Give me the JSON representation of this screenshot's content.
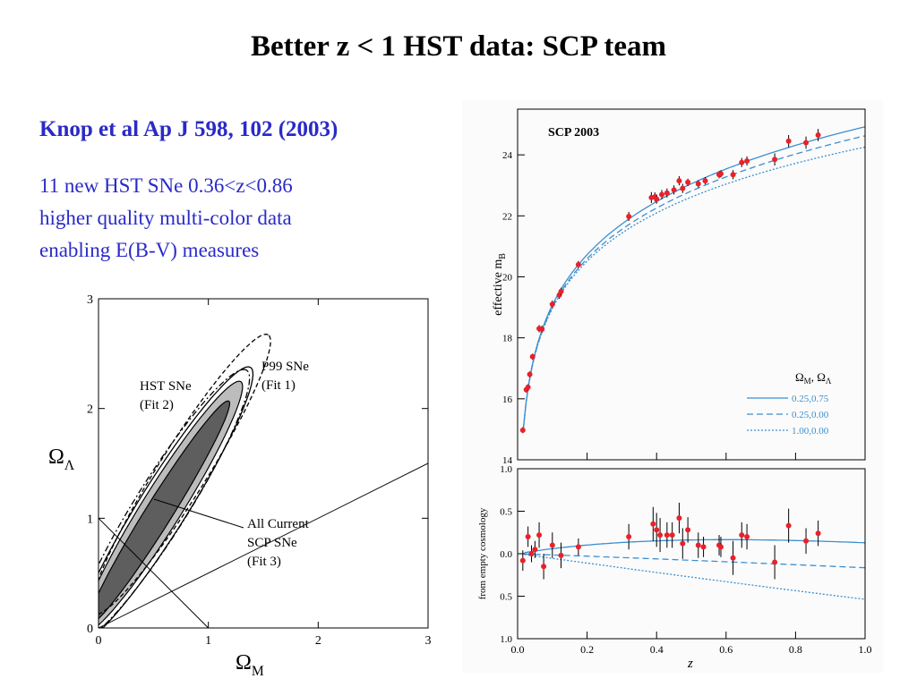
{
  "slide": {
    "title": "Better z < 1 HST data: SCP team",
    "citation": "Knop et al Ap J 598, 102 (2003)",
    "description_lines": [
      "11 new HST SNe 0.36<z<0.86",
      "higher quality multi-color data",
      "enabling E(B-V) measures"
    ]
  },
  "chart_data": [
    {
      "type": "contour",
      "xlabel": "Ω_M",
      "ylabel": "Ω_Λ",
      "xlim": [
        0,
        3
      ],
      "ylim": [
        0,
        3
      ],
      "xticks": [
        "0",
        "1",
        "2",
        "3"
      ],
      "yticks": [
        "0",
        "1",
        "2",
        "3"
      ],
      "annotations": [
        {
          "lines": [
            "P99 SNe",
            "(Fit 1)"
          ]
        },
        {
          "lines": [
            "HST SNe",
            "(Fit 2)"
          ]
        },
        {
          "lines": [
            "All Current",
            "SCP SNe",
            "(Fit 3)"
          ]
        }
      ],
      "reference_lines": [
        {
          "name": "flat",
          "points": [
            [
              0,
              1
            ],
            [
              1,
              0
            ]
          ]
        },
        {
          "name": "accel",
          "points": [
            [
              0,
              0
            ],
            [
              3,
              1.5
            ]
          ]
        }
      ],
      "contours": [
        {
          "name": "Fit 3 68%",
          "style": "filled-dark",
          "color": "#5e5e5e",
          "center": [
            0.55,
            1.05
          ],
          "semi_major": 1.2,
          "semi_minor": 0.12,
          "angle_deg": 58
        },
        {
          "name": "Fit 3 90%",
          "style": "filled-light",
          "color": "#bcbcbc",
          "center": [
            0.58,
            1.1
          ],
          "semi_major": 1.35,
          "semi_minor": 0.18,
          "angle_deg": 58
        },
        {
          "name": "Fit 3 99%",
          "style": "solid",
          "color": "#000000",
          "center": [
            0.6,
            1.12
          ],
          "semi_major": 1.48,
          "semi_minor": 0.22,
          "angle_deg": 58
        },
        {
          "name": "Fit 2",
          "style": "dash-dot",
          "color": "#000000",
          "center": [
            0.58,
            1.12
          ],
          "semi_major": 1.45,
          "semi_minor": 0.24,
          "angle_deg": 58
        },
        {
          "name": "Fit 1",
          "style": "dashed",
          "color": "#000000",
          "center": [
            0.75,
            1.4
          ],
          "semi_major": 1.5,
          "semi_minor": 0.22,
          "angle_deg": 58
        }
      ]
    },
    {
      "type": "scatter",
      "title": "SCP 2003",
      "ylabel": "effective m_B",
      "xlim": [
        0,
        1
      ],
      "ylim": [
        14,
        25.5
      ],
      "yticks": [
        "14",
        "16",
        "18",
        "20",
        "22",
        "24"
      ],
      "legend": {
        "title": "Ω_M, Ω_Λ",
        "position": "bottom-right",
        "entries": [
          "0.25,0.75",
          "0.25,0.00",
          "1.00,0.00"
        ]
      },
      "series": [
        {
          "name": "0.25,0.75",
          "style": "solid",
          "color": "#3b8fd0",
          "curve": "lambda"
        },
        {
          "name": "0.25,0.00",
          "style": "dashed",
          "color": "#3b8fd0",
          "curve": "open"
        },
        {
          "name": "1.00,0.00",
          "style": "dotted",
          "color": "#3b8fd0",
          "curve": "eds"
        }
      ],
      "points": [
        {
          "z": 0.015,
          "m": 14.97,
          "err": 0.1
        },
        {
          "z": 0.025,
          "m": 16.3,
          "err": 0.1
        },
        {
          "z": 0.03,
          "m": 16.38,
          "err": 0.1
        },
        {
          "z": 0.035,
          "m": 16.8,
          "err": 0.1
        },
        {
          "z": 0.043,
          "m": 17.38,
          "err": 0.1
        },
        {
          "z": 0.062,
          "m": 18.3,
          "err": 0.12
        },
        {
          "z": 0.07,
          "m": 18.28,
          "err": 0.12
        },
        {
          "z": 0.1,
          "m": 19.1,
          "err": 0.12
        },
        {
          "z": 0.12,
          "m": 19.4,
          "err": 0.12
        },
        {
          "z": 0.125,
          "m": 19.52,
          "err": 0.12
        },
        {
          "z": 0.175,
          "m": 20.4,
          "err": 0.12
        },
        {
          "z": 0.32,
          "m": 21.98,
          "err": 0.15
        },
        {
          "z": 0.385,
          "m": 22.6,
          "err": 0.18
        },
        {
          "z": 0.395,
          "m": 22.62,
          "err": 0.15
        },
        {
          "z": 0.4,
          "m": 22.55,
          "err": 0.15
        },
        {
          "z": 0.415,
          "m": 22.7,
          "err": 0.15
        },
        {
          "z": 0.43,
          "m": 22.75,
          "err": 0.15
        },
        {
          "z": 0.45,
          "m": 22.85,
          "err": 0.15
        },
        {
          "z": 0.465,
          "m": 23.15,
          "err": 0.15
        },
        {
          "z": 0.475,
          "m": 22.9,
          "err": 0.15
        },
        {
          "z": 0.49,
          "m": 23.1,
          "err": 0.12
        },
        {
          "z": 0.52,
          "m": 23.05,
          "err": 0.12
        },
        {
          "z": 0.54,
          "m": 23.15,
          "err": 0.12
        },
        {
          "z": 0.58,
          "m": 23.35,
          "err": 0.12
        },
        {
          "z": 0.585,
          "m": 23.38,
          "err": 0.12
        },
        {
          "z": 0.62,
          "m": 23.35,
          "err": 0.15
        },
        {
          "z": 0.645,
          "m": 23.75,
          "err": 0.15
        },
        {
          "z": 0.66,
          "m": 23.8,
          "err": 0.15
        },
        {
          "z": 0.74,
          "m": 23.85,
          "err": 0.2
        },
        {
          "z": 0.78,
          "m": 24.45,
          "err": 0.2
        },
        {
          "z": 0.83,
          "m": 24.4,
          "err": 0.2
        },
        {
          "z": 0.865,
          "m": 24.65,
          "err": 0.2
        }
      ]
    },
    {
      "type": "scatter",
      "xlabel": "z",
      "ylabel": "from empty cosmology",
      "xlim": [
        0,
        1
      ],
      "ylim": [
        -1.0,
        1.0
      ],
      "inverted_y": true,
      "xticks": [
        "0.0",
        "0.2",
        "0.4",
        "0.6",
        "0.8",
        "1.0"
      ],
      "yticks": [
        "1.0",
        "0.5",
        "0.0",
        "0.5",
        "1.0"
      ],
      "points": [
        {
          "z": 0.015,
          "v": -0.08,
          "err": 0.12
        },
        {
          "z": 0.03,
          "v": 0.2,
          "err": 0.12
        },
        {
          "z": 0.04,
          "v": 0.0,
          "err": 0.1
        },
        {
          "z": 0.05,
          "v": 0.05,
          "err": 0.1
        },
        {
          "z": 0.062,
          "v": 0.22,
          "err": 0.15
        },
        {
          "z": 0.075,
          "v": -0.15,
          "err": 0.15
        },
        {
          "z": 0.1,
          "v": 0.1,
          "err": 0.15
        },
        {
          "z": 0.125,
          "v": -0.02,
          "err": 0.15
        },
        {
          "z": 0.175,
          "v": 0.08,
          "err": 0.1
        },
        {
          "z": 0.32,
          "v": 0.2,
          "err": 0.15
        },
        {
          "z": 0.39,
          "v": 0.35,
          "err": 0.2
        },
        {
          "z": 0.4,
          "v": 0.28,
          "err": 0.2
        },
        {
          "z": 0.41,
          "v": 0.22,
          "err": 0.2
        },
        {
          "z": 0.43,
          "v": 0.22,
          "err": 0.15
        },
        {
          "z": 0.445,
          "v": 0.22,
          "err": 0.15
        },
        {
          "z": 0.465,
          "v": 0.42,
          "err": 0.18
        },
        {
          "z": 0.475,
          "v": 0.12,
          "err": 0.18
        },
        {
          "z": 0.49,
          "v": 0.28,
          "err": 0.15
        },
        {
          "z": 0.52,
          "v": 0.1,
          "err": 0.15
        },
        {
          "z": 0.535,
          "v": 0.08,
          "err": 0.12
        },
        {
          "z": 0.58,
          "v": 0.1,
          "err": 0.12
        },
        {
          "z": 0.585,
          "v": 0.08,
          "err": 0.12
        },
        {
          "z": 0.62,
          "v": -0.05,
          "err": 0.2
        },
        {
          "z": 0.645,
          "v": 0.22,
          "err": 0.15
        },
        {
          "z": 0.66,
          "v": 0.2,
          "err": 0.15
        },
        {
          "z": 0.74,
          "v": -0.1,
          "err": 0.2
        },
        {
          "z": 0.78,
          "v": 0.33,
          "err": 0.2
        },
        {
          "z": 0.83,
          "v": 0.15,
          "err": 0.15
        },
        {
          "z": 0.865,
          "v": 0.24,
          "err": 0.15
        }
      ]
    }
  ]
}
